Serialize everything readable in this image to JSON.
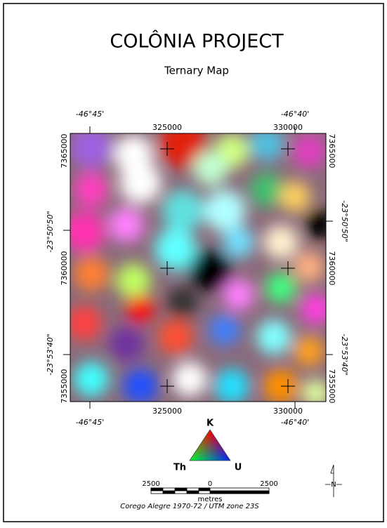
{
  "header": {
    "title": "COLÔNIA PROJECT",
    "subtitle": "Ternary Map"
  },
  "map": {
    "top_geo": [
      "-46°45'",
      "-46°40'"
    ],
    "top_utm": [
      "325000",
      "330000"
    ],
    "left": [
      "7365000",
      "-23°50'50\"",
      "7360000",
      "-23°53'40\"",
      "7355000"
    ],
    "right": [
      "7365000",
      "-23°50'50\"",
      "7360000",
      "-23°53'40\"",
      "7355000"
    ],
    "bottom_utm": [
      "325000",
      "330000"
    ],
    "bottom_geo": [
      "-46°45'",
      "-46°40'"
    ]
  },
  "legend": {
    "top": "K",
    "left": "Th",
    "right": "U"
  },
  "scale_bar": {
    "labels": [
      "2500",
      "0",
      "2500"
    ],
    "unit": "metres",
    "projection": "Corego Alegre 1970-72 / UTM zone 23S"
  },
  "north_arrow": {
    "label": "N"
  }
}
